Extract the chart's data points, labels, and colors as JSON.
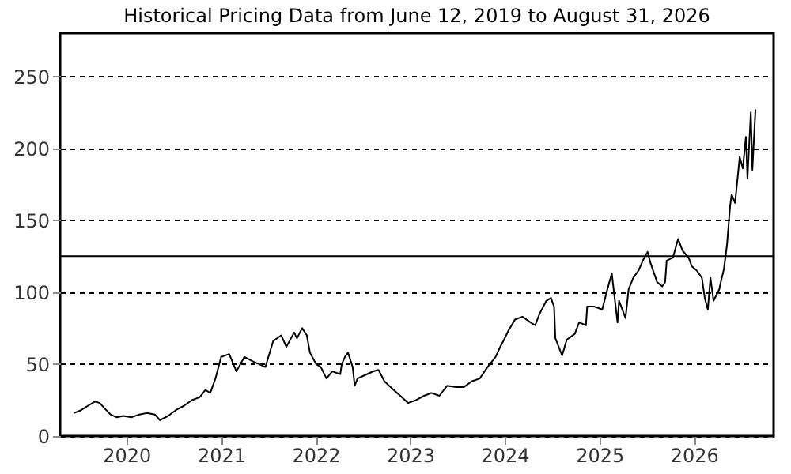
{
  "chart_data": {
    "type": "line",
    "title": "Historical Pricing Data from June 12, 2019 to August 31, 2026",
    "x": [
      "2019-06-12",
      "2019-07-10",
      "2019-08-05",
      "2019-09-01",
      "2019-09-20",
      "2019-10-10",
      "2019-11-01",
      "2019-11-25",
      "2019-12-20",
      "2020-01-20",
      "2020-02-20",
      "2020-03-20",
      "2020-04-20",
      "2020-05-10",
      "2020-06-10",
      "2020-07-10",
      "2020-08-10",
      "2020-09-10",
      "2020-10-10",
      "2020-11-01",
      "2020-11-20",
      "2020-12-10",
      "2021-01-01",
      "2021-02-01",
      "2021-03-01",
      "2021-04-01",
      "2021-05-03",
      "2021-06-21",
      "2021-07-21",
      "2021-08-21",
      "2021-09-10",
      "2021-10-10",
      "2021-10-21",
      "2021-11-10",
      "2021-11-28",
      "2021-12-10",
      "2022-01-03",
      "2022-01-21",
      "2022-02-12",
      "2022-03-06",
      "2022-04-06",
      "2022-04-12",
      "2022-04-24",
      "2022-05-06",
      "2022-05-24",
      "2022-06-01",
      "2022-06-12",
      "2022-07-06",
      "2022-08-12",
      "2022-09-01",
      "2022-09-24",
      "2022-10-24",
      "2022-11-24",
      "2022-12-24",
      "2023-01-24",
      "2023-02-24",
      "2023-03-24",
      "2023-04-24",
      "2023-05-24",
      "2023-06-27",
      "2023-07-27",
      "2023-08-27",
      "2023-09-27",
      "2023-10-27",
      "2023-11-27",
      "2023-12-15",
      "2023-12-27",
      "2024-01-15",
      "2024-02-10",
      "2024-03-10",
      "2024-04-10",
      "2024-04-28",
      "2024-05-15",
      "2024-06-10",
      "2024-06-28",
      "2024-07-10",
      "2024-07-15",
      "2024-08-10",
      "2024-08-28",
      "2024-09-28",
      "2024-10-15",
      "2024-11-10",
      "2024-11-15",
      "2024-12-12",
      "2025-01-12",
      "2025-02-01",
      "2025-02-18",
      "2025-03-01",
      "2025-03-12",
      "2025-03-18",
      "2025-04-12",
      "2025-04-24",
      "2025-05-12",
      "2025-06-01",
      "2025-06-18",
      "2025-07-06",
      "2025-07-18",
      "2025-08-12",
      "2025-09-01",
      "2025-09-12",
      "2025-09-18",
      "2025-10-12",
      "2025-11-01",
      "2025-11-18",
      "2025-12-12",
      "2025-12-24",
      "2026-01-12",
      "2026-02-01",
      "2026-02-12",
      "2026-02-24",
      "2026-03-06",
      "2026-03-18",
      "2026-04-09",
      "2026-04-15",
      "2026-04-27",
      "2026-05-09",
      "2026-05-21",
      "2026-05-27",
      "2026-06-09",
      "2026-06-21",
      "2026-06-27",
      "2026-07-09",
      "2026-07-21",
      "2026-07-27",
      "2026-08-09",
      "2026-08-15",
      "2026-08-27"
    ],
    "series": [
      {
        "color": "#000000",
        "values": [
          16,
          18,
          21,
          24,
          23,
          19,
          15,
          13,
          14,
          13,
          15,
          16,
          15,
          11,
          14,
          18,
          21,
          25,
          27,
          32,
          30,
          40,
          55,
          57,
          45,
          55,
          52,
          48,
          66,
          70,
          62,
          72,
          68,
          75,
          70,
          58,
          50,
          48,
          40,
          45,
          43,
          50,
          55,
          58,
          48,
          35,
          40,
          42,
          45,
          46,
          38,
          33,
          28,
          23,
          25,
          28,
          30,
          28,
          35,
          34,
          34,
          38,
          40,
          48,
          55,
          62,
          66,
          73,
          81,
          83,
          79,
          77,
          85,
          94,
          96,
          90,
          68,
          56,
          67,
          71,
          79,
          77,
          90,
          90,
          88,
          102,
          113,
          96,
          79,
          94,
          82,
          102,
          110,
          115,
          122,
          128,
          120,
          107,
          104,
          107,
          122,
          124,
          137,
          129,
          124,
          118,
          115,
          110,
          96,
          88,
          110,
          94,
          102,
          107,
          116,
          133,
          160,
          168,
          162,
          183,
          194,
          186,
          208,
          179,
          225,
          185,
          227
        ]
      }
    ],
    "xlim": [
      "2019-04-20",
      "2026-11-05"
    ],
    "xticks": [
      {
        "value": "2020-01-01",
        "label": "2020"
      },
      {
        "value": "2021-01-01",
        "label": "2021"
      },
      {
        "value": "2022-01-01",
        "label": "2022"
      },
      {
        "value": "2023-01-01",
        "label": "2023"
      },
      {
        "value": "2024-01-01",
        "label": "2024"
      },
      {
        "value": "2025-01-01",
        "label": "2025"
      },
      {
        "value": "2026-01-01",
        "label": "2026"
      }
    ],
    "ylim": [
      0,
      280
    ],
    "yticks": [
      0,
      50,
      100,
      150,
      200,
      250
    ],
    "grid": "y",
    "line_style": "solid",
    "ref_lines": [
      {
        "axis": "y",
        "value": 125,
        "color": "#000000"
      }
    ]
  }
}
